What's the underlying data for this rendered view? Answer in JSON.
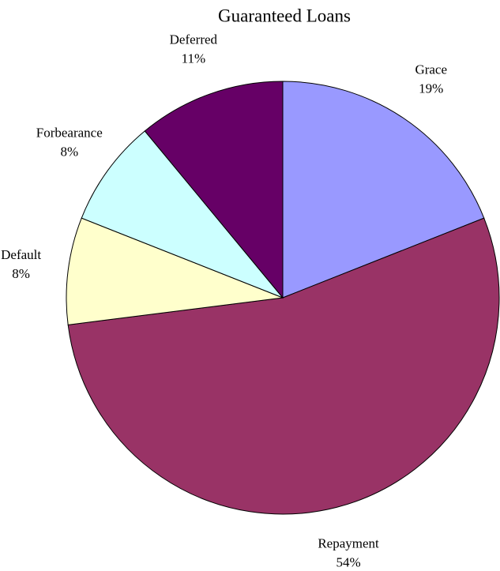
{
  "chart_data": {
    "type": "pie",
    "title": "Guaranteed Loans",
    "categories": [
      "Grace",
      "Repayment",
      "Default",
      "Forbearance",
      "Deferred"
    ],
    "values": [
      19,
      54,
      8,
      8,
      11
    ],
    "value_labels": [
      "19%",
      "54%",
      "8%",
      "8%",
      "11%"
    ],
    "colors": [
      "#9999ff",
      "#993366",
      "#ffffcc",
      "#ccffff",
      "#660066"
    ]
  }
}
